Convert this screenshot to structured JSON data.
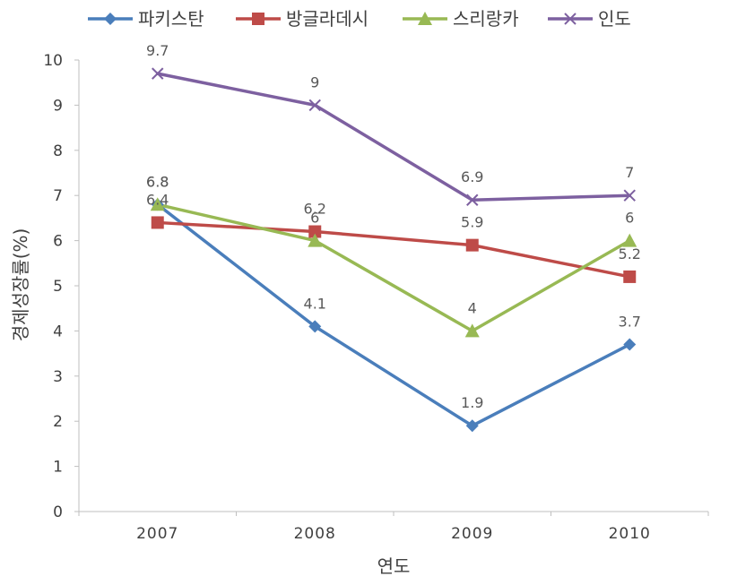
{
  "chart_data": {
    "type": "line",
    "title": "",
    "xlabel": "연도",
    "ylabel": "경제성장률(%)",
    "categories": [
      "2007",
      "2008",
      "2009",
      "2010"
    ],
    "ylim": [
      0,
      10
    ],
    "yticks": [
      "0",
      "1",
      "2",
      "3",
      "4",
      "5",
      "6",
      "7",
      "8",
      "9",
      "10"
    ],
    "grid": false,
    "legend_position": "top",
    "series": [
      {
        "name": "파키스탄",
        "values": [
          6.8,
          4.1,
          1.9,
          3.7
        ],
        "color": "#4A7EBB",
        "marker": "diamond",
        "labels": [
          "6.8",
          "4.1",
          "1.9",
          "3.7"
        ]
      },
      {
        "name": "방글라데시",
        "values": [
          6.4,
          6.2,
          5.9,
          5.2
        ],
        "color": "#BE4B48",
        "marker": "square",
        "labels": [
          "6.4",
          "6.2",
          "5.9",
          "5.2"
        ]
      },
      {
        "name": "스리랑카",
        "values": [
          6.8,
          6.0,
          4.0,
          6.0
        ],
        "color": "#98B954",
        "marker": "triangle",
        "labels": [
          "6.8",
          "6",
          "4",
          "6"
        ]
      },
      {
        "name": "인도",
        "values": [
          9.7,
          9.0,
          6.9,
          7.0
        ],
        "color": "#7D60A0",
        "marker": "x",
        "labels": [
          "9.7",
          "9",
          "6.9",
          "7"
        ]
      }
    ]
  }
}
